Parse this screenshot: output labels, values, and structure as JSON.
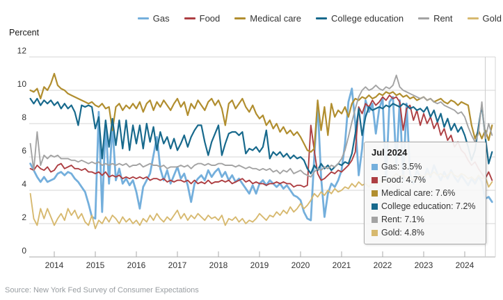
{
  "legend": {
    "items": [
      {
        "label": "Gas",
        "color": "#74AFDC"
      },
      {
        "label": "Food",
        "color": "#AD3E42"
      },
      {
        "label": "Medical care",
        "color": "#B18E2F"
      },
      {
        "label": "College education",
        "color": "#17698C"
      },
      {
        "label": "Rent",
        "color": "#A3A3A3"
      },
      {
        "label": "Gold",
        "color": "#D7B96F"
      }
    ]
  },
  "y_axis": {
    "title": "Percent",
    "ticks": [
      0,
      2,
      4,
      6,
      8,
      10,
      12
    ]
  },
  "x_axis": {
    "years": [
      2014,
      2015,
      2016,
      2017,
      2018,
      2019,
      2020,
      2021,
      2022,
      2023,
      2024
    ]
  },
  "tooltip": {
    "title": "Jul 2024",
    "rows": [
      {
        "label": "Gas",
        "value": "3.5%",
        "color": "#74AFDC"
      },
      {
        "label": "Food",
        "value": "4.7%",
        "color": "#AD3E42"
      },
      {
        "label": "Medical care",
        "value": "7.6%",
        "color": "#B18E2F"
      },
      {
        "label": "College education",
        "value": "7.2%",
        "color": "#17698C"
      },
      {
        "label": "Rent",
        "value": "7.1%",
        "color": "#A3A3A3"
      },
      {
        "label": "Gold",
        "value": "4.8%",
        "color": "#D7B96F"
      }
    ]
  },
  "source": "Source: New York Fed Survey of Consumer Expectations",
  "chart_data": {
    "type": "line",
    "title": "",
    "ylabel": "Percent",
    "ylim": [
      0,
      12
    ],
    "grid": true,
    "legend_position": "top-right",
    "x_start": "2013-06",
    "x_end": "2024-09",
    "x_frequency": "monthly",
    "n_points": 136,
    "crosshair_x": "2024-07",
    "series": [
      {
        "name": "Gas",
        "color": "#74AFDC",
        "width": 2.8,
        "values": [
          5.6,
          5.2,
          4.8,
          4.5,
          4.8,
          4.5,
          4.6,
          4.7,
          5.0,
          5.1,
          4.9,
          5.1,
          5.0,
          4.7,
          4.5,
          4.2,
          3.9,
          3.2,
          2.4,
          2.3,
          8.7,
          2.7,
          8.0,
          4.4,
          7.9,
          4.6,
          5.3,
          4.4,
          4.7,
          4.3,
          4.6,
          3.9,
          2.9,
          4.2,
          4.6,
          5.0,
          6.1,
          7.2,
          5.3,
          4.6,
          5.2,
          4.4,
          4.9,
          5.4,
          4.7,
          5.0,
          4.3,
          3.3,
          4.4,
          4.7,
          4.9,
          4.6,
          5.2,
          4.8,
          5.1,
          5.3,
          4.8,
          5.1,
          4.6,
          4.9,
          4.5,
          4.7,
          4.4,
          4.1,
          3.8,
          4.3,
          3.8,
          4.4,
          4.6,
          4.3,
          4.6,
          4.4,
          4.2,
          4.4,
          4.1,
          4.3,
          4.0,
          3.7,
          3.6,
          3.4,
          2.7,
          2.3,
          2.2,
          6.0,
          9.2,
          4.8,
          2.4,
          3.8,
          4.4,
          4.2,
          4.6,
          5.2,
          6.8,
          9.3,
          10.1,
          8.0,
          4.9,
          6.5,
          9.4,
          8.7,
          9.2,
          7.4,
          8.9,
          9.5,
          4.6,
          9.3,
          9.6,
          5.5,
          9.4,
          4.6,
          9.2,
          5.0,
          4.4,
          5.2,
          4.8,
          4.6,
          5.3,
          4.8,
          5.5,
          5.0,
          4.6,
          5.1,
          4.7,
          5.2,
          4.8,
          4.5,
          4.9,
          4.6,
          4.3,
          4.7,
          4.4,
          4.8,
          4.5,
          3.5,
          3.6,
          3.3
        ]
      },
      {
        "name": "Food",
        "color": "#AD3E42",
        "width": 1.9,
        "values": [
          5.3,
          5.2,
          5.5,
          5.3,
          5.2,
          5.4,
          5.1,
          5.2,
          5.5,
          5.6,
          5.3,
          5.4,
          5.5,
          5.3,
          5.3,
          5.2,
          5.3,
          5.1,
          5.1,
          5.0,
          5.1,
          4.9,
          5.1,
          4.8,
          4.9,
          4.8,
          4.9,
          4.7,
          4.8,
          4.7,
          4.8,
          4.7,
          4.8,
          4.7,
          4.8,
          4.6,
          4.7,
          4.7,
          4.6,
          4.7,
          4.5,
          4.6,
          4.5,
          4.6,
          4.6,
          4.5,
          4.6,
          4.4,
          4.6,
          4.4,
          4.5,
          4.4,
          4.6,
          4.4,
          4.5,
          4.5,
          4.6,
          4.5,
          4.6,
          4.4,
          4.5,
          4.6,
          4.7,
          4.5,
          4.6,
          4.4,
          4.5,
          4.4,
          4.4,
          4.3,
          4.4,
          4.4,
          4.5,
          4.4,
          4.5,
          4.4,
          4.4,
          4.2,
          4.3,
          4.3,
          4.2,
          4.3,
          7.9,
          6.4,
          5.0,
          4.6,
          4.7,
          4.9,
          5.1,
          5.0,
          5.2,
          5.1,
          5.3,
          5.5,
          5.8,
          6.3,
          9.0,
          8.6,
          9.2,
          9.0,
          9.4,
          9.1,
          9.3,
          9.6,
          9.4,
          9.7,
          9.5,
          9.6,
          9.3,
          7.6,
          8.9,
          9.1,
          8.2,
          8.8,
          7.9,
          8.6,
          8.0,
          8.4,
          7.7,
          8.1,
          7.3,
          7.7,
          7.0,
          7.3,
          6.6,
          6.9,
          6.4,
          6.2,
          5.8,
          5.5,
          5.7,
          5.3,
          5.0,
          4.7,
          5.1,
          4.6
        ]
      },
      {
        "name": "Medical care",
        "color": "#B18E2F",
        "width": 2.2,
        "values": [
          10.0,
          9.9,
          10.1,
          9.5,
          10.2,
          10.0,
          10.4,
          11.0,
          10.3,
          10.1,
          10.0,
          9.8,
          9.7,
          9.6,
          9.5,
          9.4,
          9.3,
          9.2,
          9.3,
          9.1,
          9.0,
          9.2,
          8.9,
          9.0,
          7.6,
          9.0,
          9.2,
          8.8,
          9.1,
          8.9,
          9.2,
          8.9,
          9.3,
          8.7,
          9.2,
          9.4,
          8.8,
          9.3,
          9.0,
          9.4,
          9.1,
          8.8,
          9.2,
          9.5,
          9.0,
          9.3,
          8.5,
          9.2,
          8.9,
          9.4,
          9.1,
          8.8,
          9.3,
          9.5,
          9.1,
          9.4,
          8.9,
          7.9,
          9.2,
          9.4,
          8.9,
          9.2,
          9.5,
          9.0,
          8.7,
          9.1,
          8.6,
          8.3,
          8.5,
          7.9,
          8.2,
          7.7,
          8.0,
          7.5,
          7.8,
          7.4,
          7.6,
          7.3,
          7.5,
          7.2,
          6.8,
          6.4,
          6.3,
          6.5,
          9.4,
          7.6,
          9.0,
          7.3,
          9.2,
          8.4,
          8.8,
          8.6,
          9.0,
          8.4,
          9.2,
          9.5,
          9.4,
          9.6,
          9.5,
          9.7,
          9.5,
          9.6,
          9.8,
          9.7,
          9.9,
          9.8,
          9.9,
          9.7,
          9.8,
          9.6,
          9.7,
          9.5,
          9.6,
          9.4,
          9.5,
          9.6,
          9.4,
          9.5,
          9.3,
          9.4,
          9.5,
          9.3,
          9.2,
          9.4,
          9.3,
          9.1,
          9.3,
          9.2,
          9.1,
          7.9,
          7.1,
          7.6,
          7.1,
          7.6,
          7.0,
          7.9
        ]
      },
      {
        "name": "College education",
        "color": "#17698C",
        "width": 2.2,
        "values": [
          9.5,
          9.2,
          9.5,
          9.1,
          9.4,
          9.2,
          9.4,
          9.1,
          9.3,
          8.9,
          9.2,
          8.9,
          9.1,
          8.7,
          7.9,
          9.1,
          9.0,
          9.1,
          9.0,
          7.7,
          8.4,
          5.9,
          8.2,
          6.6,
          8.3,
          6.7,
          8.2,
          6.5,
          8.2,
          6.4,
          7.9,
          6.8,
          7.9,
          6.5,
          8.0,
          6.9,
          7.8,
          6.4,
          7.5,
          6.8,
          7.2,
          6.5,
          7.1,
          6.4,
          6.8,
          7.3,
          6.6,
          7.2,
          7.6,
          7.9,
          7.9,
          6.9,
          6.1,
          6.9,
          7.4,
          7.9,
          6.1,
          6.8,
          7.4,
          7.5,
          7.5,
          7.3,
          7.5,
          6.2,
          6.5,
          6.4,
          6.6,
          6.3,
          6.6,
          7.6,
          5.9,
          6.3,
          6.1,
          6.3,
          6.0,
          6.2,
          5.9,
          6.1,
          5.9,
          6.0,
          5.8,
          5.3,
          5.0,
          5.5,
          5.2,
          5.6,
          5.3,
          5.5,
          5.2,
          5.4,
          5.6,
          5.5,
          5.7,
          5.6,
          6.2,
          7.4,
          8.9,
          7.3,
          8.4,
          9.0,
          8.8,
          8.9,
          9.0,
          8.9,
          9.1,
          9.0,
          9.2,
          9.1,
          9.0,
          9.2,
          9.1,
          8.9,
          9.0,
          8.8,
          8.9,
          8.7,
          9.0,
          8.4,
          8.8,
          8.1,
          8.6,
          7.8,
          8.3,
          7.6,
          8.0,
          7.5,
          7.8,
          7.3,
          6.6,
          5.8,
          6.4,
          7.8,
          9.1,
          7.2,
          5.6,
          6.3
        ]
      },
      {
        "name": "Rent",
        "color": "#A3A3A3",
        "width": 1.9,
        "values": [
          6.8,
          5.2,
          7.5,
          5.5,
          6.1,
          5.9,
          6.1,
          6.0,
          6.1,
          5.9,
          5.9,
          5.9,
          5.8,
          5.8,
          5.7,
          5.8,
          5.7,
          5.6,
          5.7,
          5.6,
          5.7,
          5.5,
          5.6,
          5.5,
          5.6,
          5.5,
          5.6,
          5.5,
          5.6,
          5.4,
          5.5,
          5.5,
          5.6,
          5.4,
          5.5,
          5.6,
          5.5,
          5.5,
          5.4,
          5.5,
          5.3,
          5.4,
          5.4,
          5.4,
          5.5,
          5.4,
          5.5,
          5.3,
          5.5,
          5.6,
          5.6,
          5.5,
          5.6,
          5.5,
          5.5,
          5.6,
          5.6,
          5.5,
          5.5,
          5.5,
          5.4,
          5.5,
          5.4,
          5.3,
          5.4,
          5.3,
          5.3,
          5.2,
          5.3,
          5.2,
          5.3,
          5.1,
          5.2,
          5.0,
          5.2,
          5.1,
          5.3,
          5.0,
          5.1,
          5.2,
          5.0,
          4.9,
          4.8,
          5.1,
          5.3,
          5.2,
          5.4,
          5.3,
          5.5,
          5.4,
          5.6,
          5.9,
          6.4,
          7.2,
          8.1,
          8.9,
          9.6,
          10.0,
          10.2,
          10.0,
          10.1,
          10.3,
          10.1,
          10.0,
          10.2,
          10.1,
          10.3,
          10.9,
          10.2,
          10.0,
          9.9,
          9.8,
          9.7,
          9.6,
          9.5,
          9.6,
          9.4,
          9.5,
          9.3,
          9.2,
          9.3,
          9.1,
          9.0,
          8.9,
          8.8,
          8.6,
          8.7,
          8.4,
          7.8,
          7.3,
          6.9,
          7.4,
          9.3,
          7.1,
          8.0,
          7.3
        ]
      },
      {
        "name": "Gold",
        "color": "#D7B96F",
        "width": 1.9,
        "values": [
          3.8,
          2.3,
          1.9,
          2.9,
          2.3,
          2.9,
          2.4,
          1.9,
          2.3,
          2.6,
          2.2,
          2.9,
          2.5,
          2.8,
          2.3,
          2.6,
          2.1,
          1.9,
          2.5,
          1.7,
          2.2,
          2.0,
          2.4,
          2.1,
          2.5,
          2.3,
          2.0,
          2.4,
          2.1,
          2.3,
          2.0,
          2.2,
          1.9,
          2.3,
          2.1,
          2.5,
          2.2,
          2.6,
          2.3,
          2.1,
          2.4,
          2.2,
          2.5,
          2.8,
          2.3,
          2.6,
          2.2,
          2.5,
          2.3,
          2.6,
          2.4,
          2.2,
          2.5,
          2.3,
          2.4,
          2.2,
          2.5,
          1.9,
          2.3,
          2.2,
          2.4,
          2.1,
          2.3,
          2.0,
          2.2,
          2.1,
          2.3,
          2.6,
          2.4,
          2.2,
          2.5,
          2.4,
          2.7,
          2.5,
          2.8,
          2.6,
          3.0,
          2.7,
          2.9,
          3.2,
          2.9,
          3.1,
          3.4,
          3.8,
          3.6,
          3.9,
          3.7,
          4.0,
          3.8,
          4.1,
          3.9,
          4.0,
          4.2,
          4.1,
          4.4,
          4.2,
          4.5,
          4.3,
          4.4,
          4.2,
          4.5,
          4.3,
          4.6,
          4.5,
          4.7,
          4.6,
          4.8,
          5.0,
          4.8,
          4.9,
          4.7,
          4.8,
          4.6,
          4.7,
          4.9,
          4.8,
          5.0,
          4.9,
          5.1,
          4.9,
          5.0,
          4.8,
          4.9,
          5.1,
          4.9,
          4.8,
          5.0,
          4.9,
          4.7,
          4.8,
          4.6,
          4.9,
          4.7,
          4.8,
          4.2,
          4.5
        ]
      }
    ]
  }
}
